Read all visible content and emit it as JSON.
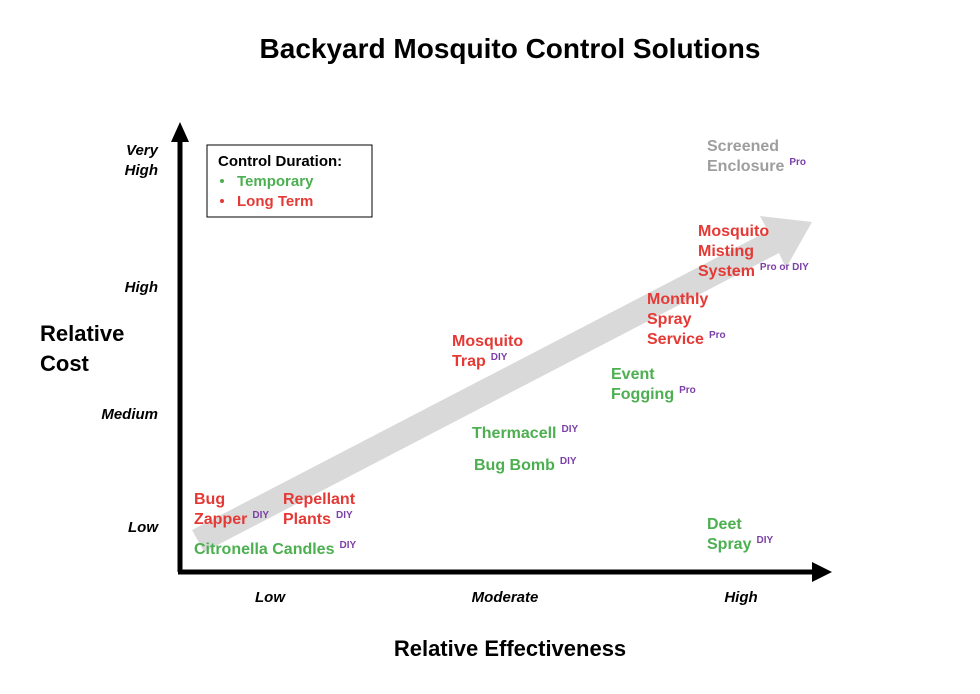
{
  "title": "Backyard Mosquito Control Solutions",
  "y_axis": {
    "label": [
      "Relative",
      "Cost"
    ],
    "levels": [
      [
        "Low"
      ],
      [
        "Medium"
      ],
      [
        "High"
      ],
      [
        "Very",
        "High"
      ]
    ]
  },
  "x_axis": {
    "label": "Relative Effectiveness",
    "levels": [
      "Low",
      "Moderate",
      "High"
    ]
  },
  "legend": {
    "title": "Control Duration:",
    "items": [
      {
        "name": "Temporary",
        "color": "#4caf50"
      },
      {
        "name": "Long Term",
        "color": "#e53935"
      }
    ]
  },
  "items": [
    {
      "lines": [
        "Screened",
        "Enclosure"
      ],
      "tag": "Pro",
      "color": "#9e9e9e"
    },
    {
      "lines": [
        "Mosquito",
        "Misting",
        "System"
      ],
      "tag": "Pro or DIY",
      "color": "#e53935"
    },
    {
      "lines": [
        "Monthly",
        "Spray",
        "Service"
      ],
      "tag": "Pro",
      "color": "#e53935"
    },
    {
      "lines": [
        "Mosquito",
        "Trap"
      ],
      "tag": "DIY",
      "color": "#e53935"
    },
    {
      "lines": [
        "Event",
        "Fogging"
      ],
      "tag": "Pro",
      "color": "#4caf50"
    },
    {
      "lines": [
        "Thermacell"
      ],
      "tag": "DIY",
      "color": "#4caf50"
    },
    {
      "lines": [
        "Bug Bomb"
      ],
      "tag": "DIY",
      "color": "#4caf50"
    },
    {
      "lines": [
        "Bug",
        "Zapper"
      ],
      "tag": "DIY",
      "color": "#e53935"
    },
    {
      "lines": [
        "Repellant",
        "Plants"
      ],
      "tag": "DIY",
      "color": "#e53935"
    },
    {
      "lines": [
        "Citronella Candles"
      ],
      "tag": "DIY",
      "color": "#4caf50"
    },
    {
      "lines": [
        "Deet",
        "Spray"
      ],
      "tag": "DIY",
      "color": "#4caf50"
    }
  ]
}
